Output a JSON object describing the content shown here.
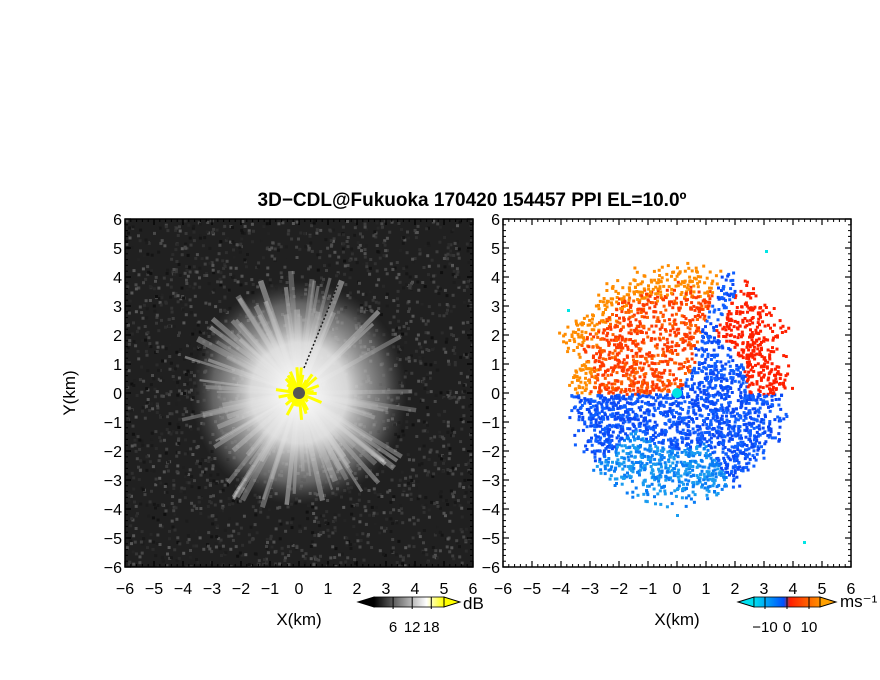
{
  "title": "3D−CDL@Fukuoka 170420 154457 PPI EL=10.0º",
  "chart_data": [
    {
      "type": "heatmap",
      "quantity": "reflectivity / SNR",
      "xlabel": "X(km)",
      "ylabel": "Y(km)",
      "xlim": [
        -6,
        6
      ],
      "ylim": [
        -6,
        6
      ],
      "xticks": [
        "−6",
        "−5",
        "−4",
        "−3",
        "−2",
        "−1",
        "0",
        "1",
        "2",
        "3",
        "4",
        "5",
        "6"
      ],
      "yticks": [
        "−6",
        "−5",
        "−4",
        "−3",
        "−2",
        "−1",
        "0",
        "1",
        "2",
        "3",
        "4",
        "5",
        "6"
      ],
      "colorbar": {
        "unit": "dB",
        "ticks": [
          "6",
          "12",
          "18"
        ],
        "values": [
          6,
          12,
          18
        ],
        "range": [
          0,
          22
        ],
        "colors": [
          "#000000",
          "#ffffff",
          "#ffff00"
        ]
      },
      "features": {
        "bright_echo_radius_km": 3.5,
        "center_marker_color": "#555555",
        "center_spikes_color": "#ffff00"
      }
    },
    {
      "type": "heatmap",
      "quantity": "radial velocity",
      "xlabel": "X(km)",
      "xlim": [
        -6,
        6
      ],
      "ylim": [
        -6,
        6
      ],
      "xticks": [
        "−6",
        "−5",
        "−4",
        "−3",
        "−2",
        "−1",
        "0",
        "1",
        "2",
        "3",
        "4",
        "5",
        "6"
      ],
      "yticks": [
        "−6",
        "−5",
        "−4",
        "−3",
        "−2",
        "−1",
        "0",
        "1",
        "2",
        "3",
        "4",
        "5",
        "6"
      ],
      "colorbar": {
        "unit": "ms⁻¹",
        "ticks": [
          "−10",
          "0",
          "10"
        ],
        "values": [
          -10,
          0,
          10
        ],
        "range": [
          -15,
          15
        ],
        "colors": [
          "#00e0f0",
          "#0050ff",
          "#ff2000",
          "#ff9000"
        ]
      },
      "features": {
        "positive_sector": "north-west, orange/red",
        "negative_sector": "east and south, blue",
        "center_marker_color": "#00e5e5"
      }
    }
  ]
}
